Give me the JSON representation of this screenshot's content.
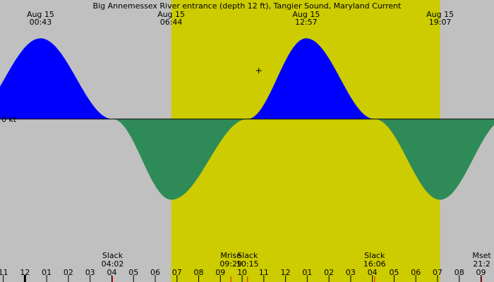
{
  "chart_data": {
    "type": "area",
    "title": "Big Annemessex River entrance (depth 12 ft), Tangier Sound, Maryland Current",
    "ylabel": "",
    "xlabel": "",
    "y_axis_label": "0 kt",
    "x_range_hours": [
      -1.15,
      21.6
    ],
    "y_range_kt": [
      -1.6,
      1.3
    ],
    "daylight": {
      "start": "06:44",
      "end": "19:07",
      "color": "#cccc00"
    },
    "night_color": "#c0c0c0",
    "flood_color": "#0000ff",
    "ebb_color": "#2e8b57",
    "curve_points": [
      {
        "time": "00:43",
        "value": 1.0
      },
      {
        "time": "04:02",
        "value": 0.0
      },
      {
        "time": "06:44",
        "value": -1.0
      },
      {
        "time": "10:15",
        "value": 0.0
      },
      {
        "time": "12:57",
        "value": 1.0
      },
      {
        "time": "16:06",
        "value": 0.0
      },
      {
        "time": "19:07",
        "value": -1.0
      }
    ],
    "top_labels": [
      {
        "date": "Aug 15",
        "time": "00:43"
      },
      {
        "date": "Aug 15",
        "time": "06:44"
      },
      {
        "date": "Aug 15",
        "time": "12:57"
      },
      {
        "date": "Aug 15",
        "time": "19:07"
      }
    ],
    "events": [
      {
        "label": "Slack",
        "time": "04:02"
      },
      {
        "label": "Mrise",
        "time": "09:29"
      },
      {
        "label": "Slack",
        "time": "10:15"
      },
      {
        "label": "Slack",
        "time": "16:06"
      },
      {
        "label": "Mset",
        "time": "21:2"
      }
    ],
    "hour_ticks": [
      "11",
      "12",
      "01",
      "02",
      "03",
      "04",
      "05",
      "06",
      "07",
      "08",
      "09",
      "10",
      "11",
      "12",
      "01",
      "02",
      "03",
      "04",
      "05",
      "06",
      "07",
      "08",
      "09"
    ],
    "hour_tick_start": -1,
    "cursor_mark": {
      "time": "10:46",
      "value": 0.6
    }
  }
}
